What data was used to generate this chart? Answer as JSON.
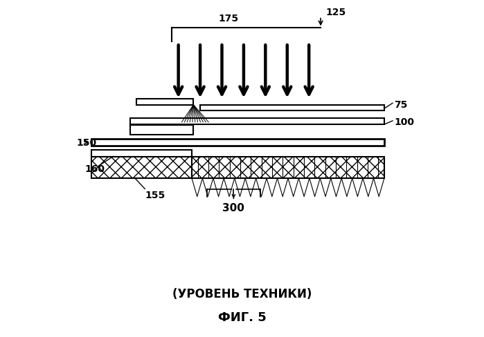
{
  "title": "ФИГ. 5",
  "subtitle": "(УРОВЕНЬ ТЕХНИКИ)",
  "bg_color": "#ffffff",
  "label_125": "125",
  "label_175": "175",
  "label_75": "75",
  "label_100": "100",
  "label_150": "150",
  "label_160": "160",
  "label_155": "155",
  "label_300": "300",
  "figsize": [
    6.99,
    4.89
  ],
  "dpi": 100
}
